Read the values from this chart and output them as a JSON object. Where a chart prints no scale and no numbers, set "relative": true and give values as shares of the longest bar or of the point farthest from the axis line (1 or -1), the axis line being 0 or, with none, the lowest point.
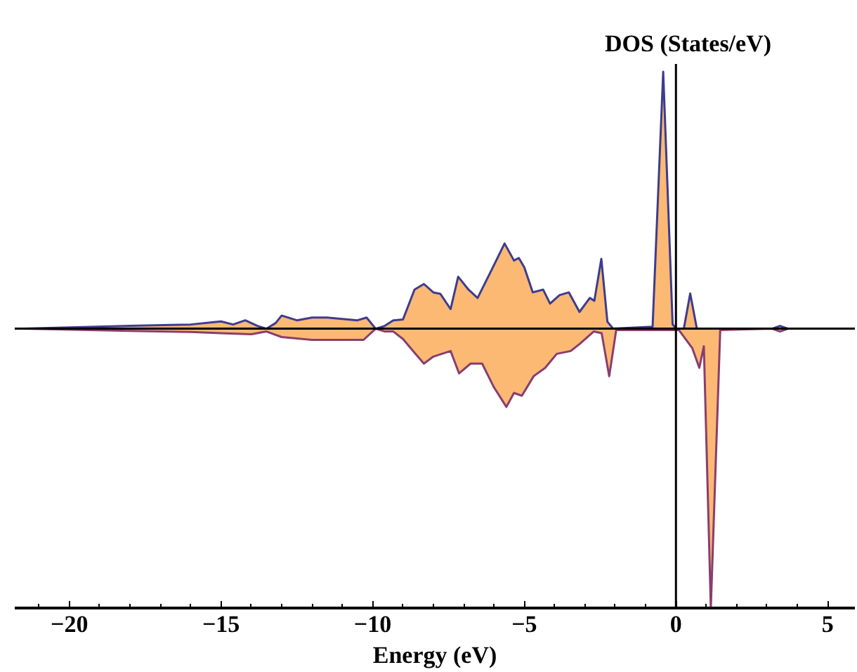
{
  "chart_data": {
    "type": "area",
    "relative": true,
    "xlabel": "Energy (eV)",
    "ylabel": "DOS (States/eV)",
    "xlim": [
      -21.8,
      5.9
    ],
    "xticks": [
      {
        "value": -20,
        "label": "−20"
      },
      {
        "value": -15,
        "label": "−15"
      },
      {
        "value": -10,
        "label": "−10"
      },
      {
        "value": -5,
        "label": "−5"
      },
      0,
      5
    ],
    "grid": false,
    "ref_lines": [
      {
        "axis": "x",
        "value": 0
      }
    ],
    "series": [
      {
        "color": "#fbb974",
        "x": [
          -21.5,
          -18,
          -16,
          -15,
          -14.6,
          -14.2,
          -13.8,
          -13.5,
          -13.2,
          -13,
          -12.5,
          -12,
          -11.5,
          -11,
          -10.5,
          -10.2,
          -9.9,
          -9.6,
          -9.32,
          -9.0,
          -8.62,
          -8.31,
          -8.0,
          -7.77,
          -7.43,
          -7.18,
          -6.84,
          -6.54,
          -6.08,
          -5.65,
          -5.34,
          -5.18,
          -5.0,
          -4.72,
          -4.38,
          -4.15,
          -3.84,
          -3.53,
          -3.18,
          -2.84,
          -2.69,
          -2.46,
          -2.26,
          -2.07,
          -0.77,
          -0.42,
          -0.11,
          0,
          0.26,
          0.47,
          0.69,
          3.17,
          3.43,
          3.7,
          5.9
        ],
        "values": [
          0,
          0.01,
          0.015,
          0.026,
          0.015,
          0.03,
          0.01,
          0,
          0.02,
          0.047,
          0.03,
          0.04,
          0.04,
          0.035,
          0.03,
          0.04,
          0,
          0.01,
          0.03,
          0.033,
          0.14,
          0.16,
          0.13,
          0.125,
          0.07,
          0.186,
          0.14,
          0.11,
          0.21,
          0.305,
          0.244,
          0.253,
          0.22,
          0.13,
          0.14,
          0.09,
          0.12,
          0.13,
          0.06,
          0.11,
          0.1,
          0.25,
          0.025,
          0,
          0.007,
          0.92,
          0.016,
          0,
          0,
          0.126,
          0,
          0,
          0.01,
          0,
          0
        ]
      },
      {
        "color": "#fbb974",
        "x": [
          -21.5,
          -18,
          -16,
          -15,
          -14,
          -13.5,
          -13,
          -12,
          -11,
          -10.3,
          -9.9,
          -9.6,
          -9.32,
          -9.0,
          -8.62,
          -8.31,
          -8.0,
          -7.43,
          -7.15,
          -6.77,
          -6.39,
          -6.0,
          -5.59,
          -5.34,
          -5.08,
          -4.69,
          -4.31,
          -3.93,
          -3.47,
          -3.17,
          -2.71,
          -2.45,
          -2.2,
          -1.97,
          0.1,
          0.54,
          0.77,
          0.92,
          1.15,
          1.46,
          3.17,
          3.43,
          3.7,
          5.9
        ],
        "values": [
          0,
          -0.008,
          -0.012,
          -0.016,
          -0.02,
          -0.01,
          -0.03,
          -0.04,
          -0.04,
          -0.04,
          0,
          -0.01,
          -0.01,
          -0.037,
          -0.086,
          -0.125,
          -0.1,
          -0.08,
          -0.16,
          -0.125,
          -0.125,
          -0.21,
          -0.28,
          -0.23,
          -0.24,
          -0.17,
          -0.14,
          -0.09,
          -0.08,
          -0.054,
          -0.01,
          -0.016,
          -0.17,
          -0.005,
          -0.005,
          -0.07,
          -0.14,
          -0.063,
          -1.0,
          -0.005,
          0,
          -0.01,
          0,
          0
        ]
      }
    ]
  }
}
